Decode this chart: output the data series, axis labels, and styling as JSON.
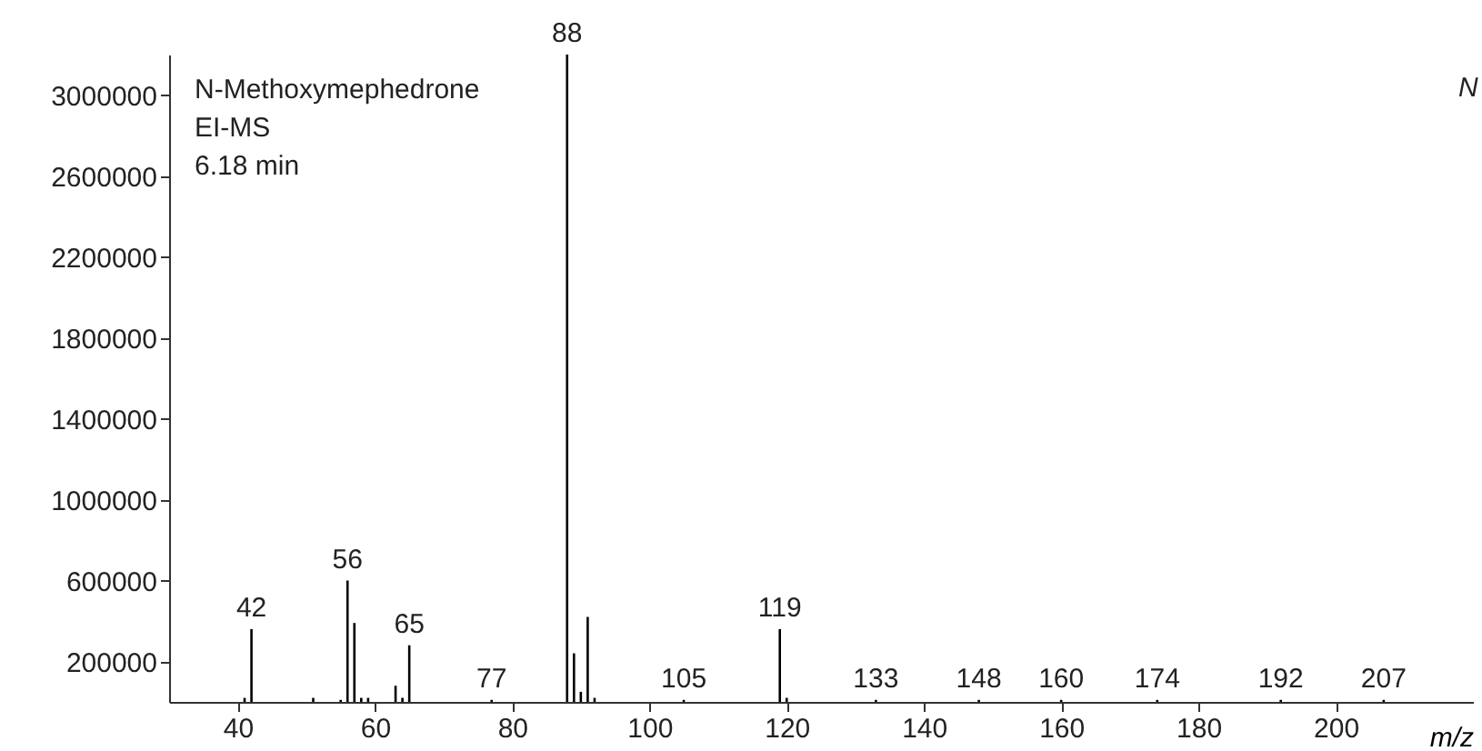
{
  "chart_data": {
    "type": "bar",
    "xlabel": "m/z",
    "annotations": [
      "N-Methoxymephedrone",
      "EI-MS",
      "6.18 min",
      "N",
      {
        "text": "42",
        "x": 42,
        "y": 360000
      },
      {
        "text": "56",
        "x": 56,
        "y": 600000
      },
      {
        "text": "65",
        "x": 65,
        "y": 280000
      },
      {
        "text": "77",
        "x": 77,
        "y": 10000
      },
      {
        "text": "88",
        "x": 88,
        "y": 3200000
      },
      {
        "text": "105",
        "x": 105,
        "y": 10000
      },
      {
        "text": "119",
        "x": 119,
        "y": 360000
      },
      {
        "text": "133",
        "x": 133,
        "y": 10000
      },
      {
        "text": "148",
        "x": 148,
        "y": 10000
      },
      {
        "text": "160",
        "x": 160,
        "y": 10000
      },
      {
        "text": "174",
        "x": 174,
        "y": 10000
      },
      {
        "text": "192",
        "x": 192,
        "y": 10000
      },
      {
        "text": "207",
        "x": 207,
        "y": 10000
      }
    ],
    "x": [
      41,
      42,
      51,
      55,
      56,
      57,
      58,
      59,
      63,
      64,
      65,
      77,
      88,
      89,
      90,
      91,
      92,
      105,
      119,
      120,
      133,
      148,
      160,
      174,
      192,
      207
    ],
    "values": [
      20000,
      360000,
      20000,
      10000,
      600000,
      390000,
      20000,
      20000,
      80000,
      20000,
      280000,
      10000,
      3200000,
      240000,
      50000,
      420000,
      20000,
      10000,
      360000,
      20000,
      10000,
      10000,
      10000,
      10000,
      10000,
      10000
    ],
    "color": "#000000",
    "xlim": [
      30,
      220
    ],
    "xticks": [
      40,
      60,
      80,
      100,
      120,
      140,
      160,
      180,
      200
    ],
    "ylim": [
      0,
      3200000
    ],
    "yticks": [
      200000,
      600000,
      1000000,
      1400000,
      1800000,
      2200000,
      2600000,
      3000000
    ],
    "grid": false
  }
}
